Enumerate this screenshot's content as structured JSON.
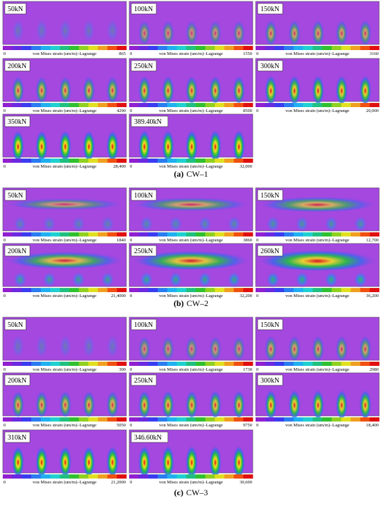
{
  "figures": [
    {
      "label": "(a)",
      "name": "CW–1",
      "panels": [
        {
          "load": "50kN",
          "scale_min": "0",
          "scale_title": "von Mises strain (um/m)–Lagrange",
          "scale_max": "865"
        },
        {
          "load": "100kN",
          "scale_min": "0",
          "scale_title": "von Mises strain (um/m)–Lagrange",
          "scale_max": "1550"
        },
        {
          "load": "150kN",
          "scale_min": "0",
          "scale_title": "von Mises strain (um/m)–Lagrange",
          "scale_max": "3160"
        },
        {
          "load": "200kN",
          "scale_min": "0",
          "scale_title": "von Mises strain (um/m)–Lagrange",
          "scale_max": "4290"
        },
        {
          "load": "250kN",
          "scale_min": "0",
          "scale_title": "von Mises strain (um/m)–Lagrange",
          "scale_max": "8500"
        },
        {
          "load": "300kN",
          "scale_min": "0",
          "scale_title": "von Mises strain (um/m)–Lagrange",
          "scale_max": "20,000"
        },
        {
          "load": "350kN",
          "scale_min": "0",
          "scale_title": "von Mises strain (um/m)–Lagrange",
          "scale_max": "28,400"
        },
        {
          "load": "389.40kN",
          "scale_min": "0",
          "scale_title": "von Mises strain (um/m)–Lagrange",
          "scale_max": "32,000"
        }
      ]
    },
    {
      "label": "(b)",
      "name": "CW–2",
      "panels": [
        {
          "load": "50kN",
          "scale_min": "0",
          "scale_title": "von Mises strain (um/m)–Lagrange",
          "scale_max": "1840"
        },
        {
          "load": "100kN",
          "scale_min": "0",
          "scale_title": "von Mises strain (um/m)–Lagrange",
          "scale_max": "3860"
        },
        {
          "load": "150kN",
          "scale_min": "0",
          "scale_title": "von Mises strain (um/m)–Lagrange",
          "scale_max": "12,700"
        },
        {
          "load": "200kN",
          "scale_min": "0",
          "scale_title": "von Mises strain (um/m)–Lagrange",
          "scale_max": "21,4000"
        },
        {
          "load": "250kN",
          "scale_min": "0",
          "scale_title": "von Mises strain (um/m)–Lagrange",
          "scale_max": "32,200"
        },
        {
          "load": "260kN",
          "scale_min": "0",
          "scale_title": "von Mises strain (um/m)–Lagrange",
          "scale_max": "36,200"
        }
      ]
    },
    {
      "label": "(c)",
      "name": "CW–3",
      "panels": [
        {
          "load": "50kN",
          "scale_min": "0",
          "scale_title": "von Mises strain (um/m)–Lagrange",
          "scale_max": "300"
        },
        {
          "load": "100kN",
          "scale_min": "0",
          "scale_title": "von Mises strain (um/m)–Lagrange",
          "scale_max": "1730"
        },
        {
          "load": "150kN",
          "scale_min": "0",
          "scale_title": "von Mises strain (um/m)–Lagrange",
          "scale_max": "2980"
        },
        {
          "load": "200kN",
          "scale_min": "0",
          "scale_title": "von Mises strain (um/m)–Lagrange",
          "scale_max": "5050"
        },
        {
          "load": "250kN",
          "scale_min": "0",
          "scale_title": "von Mises strain (um/m)–Lagrange",
          "scale_max": "9750"
        },
        {
          "load": "300kN",
          "scale_min": "0",
          "scale_title": "von Mises strain (um/m)–Lagrange",
          "scale_max": "18,400"
        },
        {
          "load": "310kN",
          "scale_min": "0",
          "scale_title": "von Mises strain (um/m)–Lagrange",
          "scale_max": "21,2000"
        },
        {
          "load": "346.60kN",
          "scale_min": "0",
          "scale_title": "von Mises strain (um/m)–Lagrange",
          "scale_max": "30,600"
        }
      ]
    }
  ]
}
